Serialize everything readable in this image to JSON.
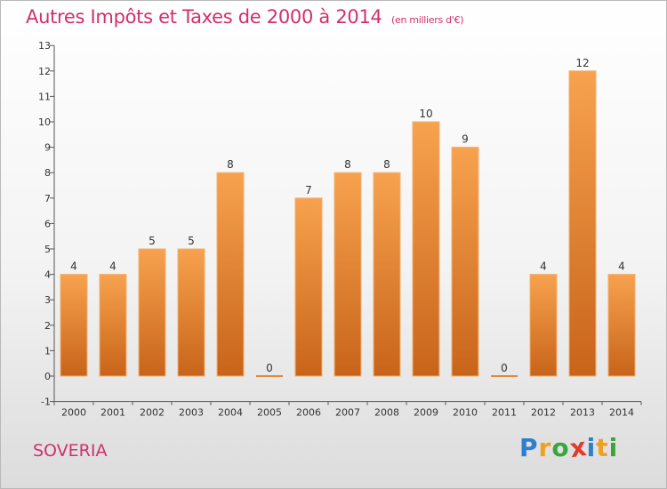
{
  "header": {
    "title": "Autres Impôts et Taxes de 2000 à 2014",
    "subtitle": "(en milliers d'€)"
  },
  "footer": {
    "place": "SOVERIA",
    "logo_letters": [
      {
        "char": "P",
        "color": "#2f7fd0"
      },
      {
        "char": "r",
        "color": "#f0a020"
      },
      {
        "char": "o",
        "color": "#3aa63a"
      },
      {
        "char": "x",
        "color": "#e03a2a"
      },
      {
        "char": "i",
        "color": "#2f7fd0"
      },
      {
        "char": "t",
        "color": "#f0a020"
      },
      {
        "char": "i",
        "color": "#3aa63a"
      }
    ]
  },
  "chart_data": {
    "type": "bar",
    "title": "Autres Impôts et Taxes de 2000 à 2014",
    "subtitle": "(en milliers d'€)",
    "categories": [
      "2000",
      "2001",
      "2002",
      "2003",
      "2004",
      "2005",
      "2006",
      "2007",
      "2008",
      "2009",
      "2010",
      "2011",
      "2012",
      "2013",
      "2014"
    ],
    "values": [
      4,
      4,
      5,
      5,
      8,
      0,
      7,
      8,
      8,
      10,
      9,
      0,
      4,
      12,
      4
    ],
    "ylim": [
      -1,
      13
    ],
    "yticks": [
      "-1",
      "0",
      "1",
      "2",
      "3",
      "4",
      "5",
      "6",
      "7",
      "8",
      "9",
      "10",
      "11",
      "12",
      "13"
    ],
    "grid": false,
    "bar_color_top": "#f7a24e",
    "bar_color_bottom": "#c8641a"
  }
}
